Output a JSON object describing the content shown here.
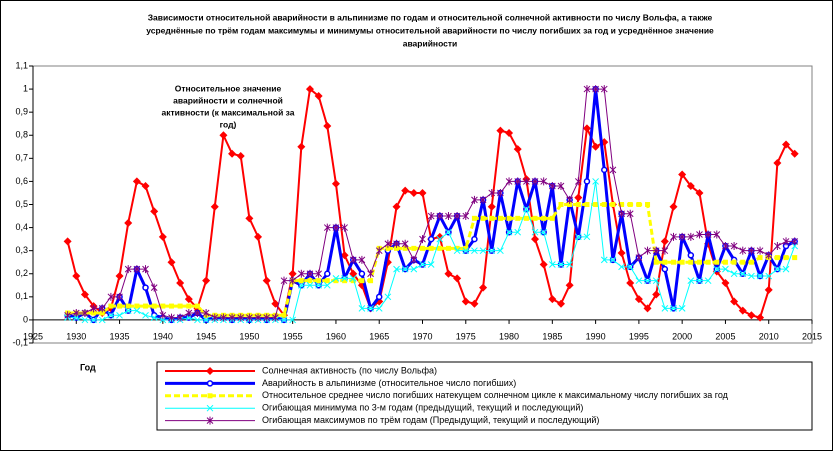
{
  "chart_data": {
    "type": "line",
    "title": [
      "Зависимости относительной аварийности в альпинизме по годам и относительной солнечной активности по числу Вольфа, а также",
      "усреднённые по трём годам максимумы и минимумы относительной аварийности по числу погибших за год и усреднённое значение",
      "аварийности"
    ],
    "annotation": [
      "Относительное значение",
      "аварийности и солнечной",
      "активности (к максимальной за",
      "год)"
    ],
    "xlabel": "Год",
    "xlim": [
      1925,
      2015
    ],
    "xticks": [
      1925,
      1930,
      1935,
      1940,
      1945,
      1950,
      1955,
      1960,
      1965,
      1970,
      1975,
      1980,
      1985,
      1990,
      1995,
      2000,
      2005,
      2010,
      2015
    ],
    "ylim": [
      -0.1,
      1.1
    ],
    "yticks": [
      {
        "value": -0.1,
        "label": "-0,1"
      },
      0,
      {
        "value": 0.1,
        "label": "0,1"
      },
      {
        "value": 0.2,
        "label": "0,2"
      },
      {
        "value": 0.3,
        "label": "0,3"
      },
      {
        "value": 0.4,
        "label": "0,4"
      },
      {
        "value": 0.5,
        "label": "0,5"
      },
      {
        "value": 0.6,
        "label": "0,6"
      },
      {
        "value": 0.7,
        "label": "0,7"
      },
      {
        "value": 0.8,
        "label": "0,8"
      },
      {
        "value": 0.9,
        "label": "0,9"
      },
      1,
      {
        "value": 1.1,
        "label": "1,1"
      }
    ],
    "grid": false,
    "legend": "bottom",
    "x": [
      1929,
      1930,
      1931,
      1932,
      1933,
      1934,
      1935,
      1936,
      1937,
      1938,
      1939,
      1940,
      1941,
      1942,
      1943,
      1944,
      1945,
      1946,
      1947,
      1948,
      1949,
      1950,
      1951,
      1952,
      1953,
      1954,
      1955,
      1956,
      1957,
      1958,
      1959,
      1960,
      1961,
      1962,
      1963,
      1964,
      1965,
      1966,
      1967,
      1968,
      1969,
      1970,
      1971,
      1972,
      1973,
      1974,
      1975,
      1976,
      1977,
      1978,
      1979,
      1980,
      1981,
      1982,
      1983,
      1984,
      1985,
      1986,
      1987,
      1988,
      1989,
      1990,
      1991,
      1992,
      1993,
      1994,
      1995,
      1996,
      1997,
      1998,
      1999,
      2000,
      2001,
      2002,
      2003,
      2004,
      2005,
      2006,
      2007,
      2008,
      2009,
      2010,
      2011,
      2012,
      2013
    ],
    "series": [
      {
        "name": "Солнечная активность (по числу Вольфа)",
        "color": "#ff0000",
        "width": 2,
        "marker": "diamond",
        "values": [
          0.34,
          0.19,
          0.11,
          0.06,
          0.03,
          0.05,
          0.19,
          0.42,
          0.6,
          0.58,
          0.47,
          0.36,
          0.25,
          0.16,
          0.09,
          0.05,
          0.17,
          0.49,
          0.8,
          0.72,
          0.71,
          0.44,
          0.36,
          0.17,
          0.07,
          0.02,
          0.2,
          0.75,
          1.0,
          0.97,
          0.84,
          0.59,
          0.28,
          0.2,
          0.15,
          0.05,
          0.08,
          0.25,
          0.49,
          0.56,
          0.55,
          0.55,
          0.35,
          0.36,
          0.2,
          0.18,
          0.08,
          0.07,
          0.14,
          0.49,
          0.82,
          0.81,
          0.74,
          0.61,
          0.35,
          0.24,
          0.09,
          0.07,
          0.15,
          0.53,
          0.83,
          0.75,
          0.77,
          0.5,
          0.29,
          0.16,
          0.09,
          0.05,
          0.11,
          0.34,
          0.49,
          0.63,
          0.58,
          0.55,
          0.33,
          0.21,
          0.16,
          0.08,
          0.04,
          0.02,
          0.01,
          0.13,
          0.68,
          0.76,
          0.72
        ]
      },
      {
        "name": "Аварийность в альпинизме (относительное число погибших)",
        "color": "#0000ff",
        "width": 3,
        "marker": "circle",
        "values": [
          0.02,
          0.01,
          0.03,
          0,
          0.05,
          0.02,
          0.1,
          0.04,
          0.22,
          0.14,
          0.02,
          0.01,
          0,
          0.01,
          0.01,
          0.03,
          0,
          0.01,
          0.01,
          0,
          0.01,
          0,
          0.01,
          0,
          0.01,
          0,
          0.17,
          0.15,
          0.2,
          0.15,
          0.2,
          0.4,
          0.18,
          0.26,
          0.2,
          0.05,
          0.1,
          0.3,
          0.33,
          0.22,
          0.26,
          0.24,
          0.35,
          0.45,
          0.38,
          0.45,
          0.3,
          0.35,
          0.52,
          0.3,
          0.55,
          0.38,
          0.6,
          0.48,
          0.6,
          0.38,
          0.58,
          0.24,
          0.52,
          0.36,
          0.6,
          1.0,
          0.65,
          0.26,
          0.46,
          0.23,
          0.27,
          0.17,
          0.3,
          0.22,
          0.05,
          0.36,
          0.28,
          0.17,
          0.37,
          0.22,
          0.32,
          0.26,
          0.2,
          0.3,
          0.19,
          0.28,
          0.22,
          0.32,
          0.34
        ]
      },
      {
        "name": "Относительное среднее число погибших натекущем солнечном цикле к максимальному числу погибших за год",
        "color": "#ffff00",
        "width": 3,
        "marker": "square",
        "dash": "6 3",
        "values": [
          0.03,
          0.03,
          0.03,
          0.03,
          0.03,
          0.06,
          0.06,
          0.06,
          0.06,
          0.06,
          0.06,
          0.06,
          0.06,
          0.06,
          0.06,
          0.06,
          0.02,
          0.02,
          0.02,
          0.02,
          0.02,
          0.02,
          0.02,
          0.02,
          0.02,
          0.02,
          0.17,
          0.17,
          0.17,
          0.17,
          0.17,
          0.17,
          0.17,
          0.17,
          0.17,
          0.17,
          0.31,
          0.31,
          0.31,
          0.31,
          0.31,
          0.31,
          0.31,
          0.31,
          0.31,
          0.31,
          0.31,
          0.44,
          0.44,
          0.44,
          0.44,
          0.44,
          0.44,
          0.44,
          0.44,
          0.44,
          0.44,
          0.5,
          0.5,
          0.5,
          0.5,
          0.5,
          0.5,
          0.5,
          0.5,
          0.5,
          0.5,
          0.5,
          0.25,
          0.25,
          0.25,
          0.25,
          0.25,
          0.25,
          0.25,
          0.25,
          0.25,
          0.25,
          0.25,
          0.25,
          0.27,
          0.27,
          0.27,
          0.27,
          0.27
        ]
      },
      {
        "name": "Огибающая минимума по 3-м годам (предыдущий, текущий и последующий)",
        "color": "#00ffff",
        "width": 1,
        "marker": "cross",
        "values": [
          0.01,
          0.01,
          0,
          0,
          0,
          0.02,
          0.02,
          0.04,
          0.04,
          0.02,
          0.01,
          0,
          0,
          0,
          0.01,
          0,
          0,
          0,
          0,
          0,
          0,
          0,
          0,
          0,
          0,
          0,
          0,
          0.15,
          0.15,
          0.15,
          0.15,
          0.18,
          0.18,
          0.18,
          0.05,
          0.05,
          0.05,
          0.1,
          0.22,
          0.22,
          0.22,
          0.24,
          0.24,
          0.35,
          0.38,
          0.3,
          0.3,
          0.3,
          0.3,
          0.3,
          0.3,
          0.38,
          0.38,
          0.48,
          0.38,
          0.38,
          0.24,
          0.24,
          0.24,
          0.36,
          0.36,
          0.6,
          0.26,
          0.26,
          0.23,
          0.23,
          0.17,
          0.17,
          0.17,
          0.05,
          0.05,
          0.05,
          0.17,
          0.17,
          0.17,
          0.22,
          0.22,
          0.2,
          0.2,
          0.19,
          0.19,
          0.19,
          0.22,
          0.22,
          0.32
        ]
      },
      {
        "name": "Огибающая максимумов по трём годам (Предыдущий, текущий и последующий)",
        "color": "#800080",
        "width": 1,
        "marker": "star",
        "values": [
          0.02,
          0.03,
          0.03,
          0.05,
          0.05,
          0.1,
          0.1,
          0.22,
          0.22,
          0.22,
          0.14,
          0.02,
          0.01,
          0.01,
          0.03,
          0.03,
          0.03,
          0.01,
          0.01,
          0.01,
          0.01,
          0.01,
          0.01,
          0.01,
          0.01,
          0.17,
          0.17,
          0.2,
          0.2,
          0.2,
          0.4,
          0.4,
          0.4,
          0.26,
          0.26,
          0.2,
          0.3,
          0.33,
          0.33,
          0.33,
          0.26,
          0.35,
          0.45,
          0.45,
          0.45,
          0.45,
          0.45,
          0.52,
          0.52,
          0.55,
          0.55,
          0.6,
          0.6,
          0.6,
          0.6,
          0.6,
          0.58,
          0.58,
          0.52,
          0.6,
          1.0,
          1.0,
          1.0,
          0.65,
          0.46,
          0.46,
          0.27,
          0.3,
          0.3,
          0.3,
          0.36,
          0.36,
          0.36,
          0.37,
          0.37,
          0.37,
          0.32,
          0.32,
          0.3,
          0.3,
          0.3,
          0.28,
          0.32,
          0.34,
          0.34
        ]
      }
    ]
  }
}
